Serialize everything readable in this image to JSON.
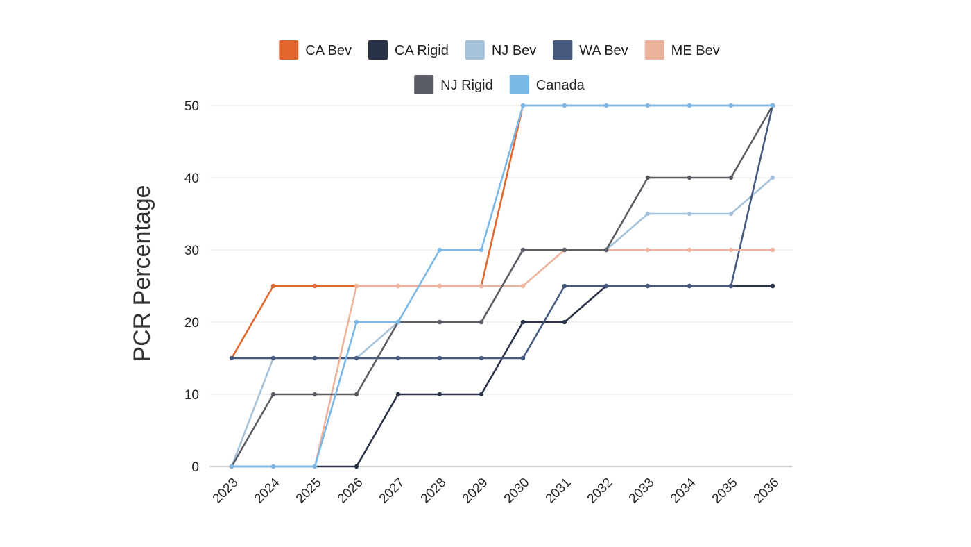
{
  "chart_data": {
    "type": "line",
    "title": "",
    "xlabel": "",
    "ylabel": "PCR Percentage",
    "x": [
      "2023",
      "2024",
      "2025",
      "2026",
      "2027",
      "2028",
      "2029",
      "2030",
      "2031",
      "2032",
      "2033",
      "2034",
      "2035",
      "2036"
    ],
    "ylim": [
      0,
      50
    ],
    "yticks": [
      0,
      10,
      20,
      30,
      40,
      50
    ],
    "grid": true,
    "legend_position": "top",
    "series": [
      {
        "name": "CA Bev",
        "color": "#e2672f",
        "values": [
          15,
          25,
          25,
          25,
          25,
          25,
          25,
          50,
          50,
          50,
          50,
          50,
          50,
          50
        ]
      },
      {
        "name": "CA Rigid",
        "color": "#2a3247",
        "values": [
          0,
          0,
          0,
          0,
          10,
          10,
          10,
          20,
          20,
          25,
          25,
          25,
          25,
          25
        ]
      },
      {
        "name": "NJ Bev",
        "color": "#a6c2da",
        "values": [
          0,
          15,
          15,
          15,
          20,
          20,
          20,
          30,
          30,
          30,
          35,
          35,
          35,
          40
        ]
      },
      {
        "name": "WA Bev",
        "color": "#455a7e",
        "values": [
          15,
          15,
          15,
          15,
          15,
          15,
          15,
          15,
          25,
          25,
          25,
          25,
          25,
          50
        ]
      },
      {
        "name": "ME Bev",
        "color": "#ecb29c",
        "values": [
          0,
          0,
          0,
          25,
          25,
          25,
          25,
          25,
          30,
          30,
          30,
          30,
          30,
          30
        ]
      },
      {
        "name": "NJ Rigid",
        "color": "#5a5d63",
        "values": [
          0,
          10,
          10,
          10,
          20,
          20,
          20,
          30,
          30,
          30,
          40,
          40,
          40,
          50
        ]
      },
      {
        "name": "Canada",
        "color": "#7ab8e8",
        "values": [
          0,
          0,
          0,
          20,
          20,
          30,
          30,
          50,
          50,
          50,
          50,
          50,
          50,
          50
        ]
      }
    ]
  }
}
